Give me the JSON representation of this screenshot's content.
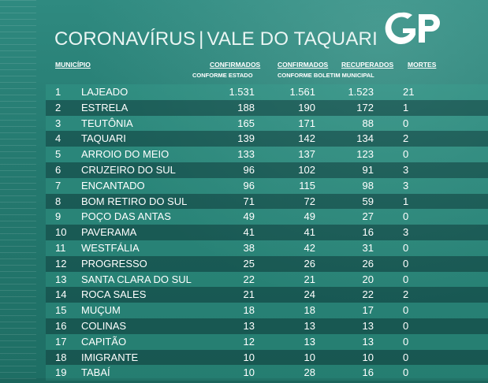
{
  "title": {
    "part1": "CORONAVÍRUS",
    "separator": "|",
    "part2": "VALE DO TAQUARI"
  },
  "logo": {
    "text": "GP"
  },
  "headers": {
    "municipio": "MUNICÍPIO",
    "confirmados_estado": "CONFIRMADOS",
    "confirmados_estado_sub": "CONFORME ESTADO",
    "confirmados_boletim": "CONFIRMADOS",
    "recuperados": "RECUPERADOS",
    "boletim_sub": "CONFORME BOLETIM MUNICIPAL",
    "mortes": "MORTES"
  },
  "rows": [
    {
      "n": "1",
      "municipio": "LAJEADO",
      "conf_estado": "1.531",
      "conf_boletim": "1.561",
      "recuperados": "1.523",
      "mortes": "21"
    },
    {
      "n": "2",
      "municipio": "ESTRELA",
      "conf_estado": "188",
      "conf_boletim": "190",
      "recuperados": "172",
      "mortes": "1"
    },
    {
      "n": "3",
      "municipio": "TEUTÔNIA",
      "conf_estado": "165",
      "conf_boletim": "171",
      "recuperados": "88",
      "mortes": "0"
    },
    {
      "n": "4",
      "municipio": "TAQUARI",
      "conf_estado": "139",
      "conf_boletim": "142",
      "recuperados": "134",
      "mortes": "2"
    },
    {
      "n": "5",
      "municipio": "ARROIO DO MEIO",
      "conf_estado": "133",
      "conf_boletim": "137",
      "recuperados": "123",
      "mortes": "0"
    },
    {
      "n": "6",
      "municipio": "CRUZEIRO DO SUL",
      "conf_estado": "96",
      "conf_boletim": "102",
      "recuperados": "91",
      "mortes": "3"
    },
    {
      "n": "7",
      "municipio": "ENCANTADO",
      "conf_estado": "96",
      "conf_boletim": "115",
      "recuperados": "98",
      "mortes": "3"
    },
    {
      "n": "8",
      "municipio": "BOM RETIRO DO SUL",
      "conf_estado": "71",
      "conf_boletim": "72",
      "recuperados": "59",
      "mortes": "1"
    },
    {
      "n": "9",
      "municipio": "POÇO DAS ANTAS",
      "conf_estado": "49",
      "conf_boletim": "49",
      "recuperados": "27",
      "mortes": "0"
    },
    {
      "n": "10",
      "municipio": "PAVERAMA",
      "conf_estado": "41",
      "conf_boletim": "41",
      "recuperados": "16",
      "mortes": "3"
    },
    {
      "n": "11",
      "municipio": "WESTFÁLIA",
      "conf_estado": "38",
      "conf_boletim": "42",
      "recuperados": "31",
      "mortes": "0"
    },
    {
      "n": "12",
      "municipio": "PROGRESSO",
      "conf_estado": "25",
      "conf_boletim": "26",
      "recuperados": "26",
      "mortes": "0"
    },
    {
      "n": "13",
      "municipio": "SANTA CLARA DO SUL",
      "conf_estado": "22",
      "conf_boletim": "21",
      "recuperados": "20",
      "mortes": "0"
    },
    {
      "n": "14",
      "municipio": "ROCA SALES",
      "conf_estado": "21",
      "conf_boletim": "24",
      "recuperados": "22",
      "mortes": "2"
    },
    {
      "n": "15",
      "municipio": "MUÇUM",
      "conf_estado": "18",
      "conf_boletim": "18",
      "recuperados": "17",
      "mortes": "0"
    },
    {
      "n": "16",
      "municipio": "COLINAS",
      "conf_estado": "13",
      "conf_boletim": "13",
      "recuperados": "13",
      "mortes": "0"
    },
    {
      "n": "17",
      "municipio": "CAPITÃO",
      "conf_estado": "12",
      "conf_boletim": "13",
      "recuperados": "13",
      "mortes": "0"
    },
    {
      "n": "18",
      "municipio": "IMIGRANTE",
      "conf_estado": "10",
      "conf_boletim": "10",
      "recuperados": "10",
      "mortes": "0"
    },
    {
      "n": "19",
      "municipio": "TABAÍ",
      "conf_estado": "10",
      "conf_boletim": "28",
      "recuperados": "16",
      "mortes": "0"
    }
  ]
}
